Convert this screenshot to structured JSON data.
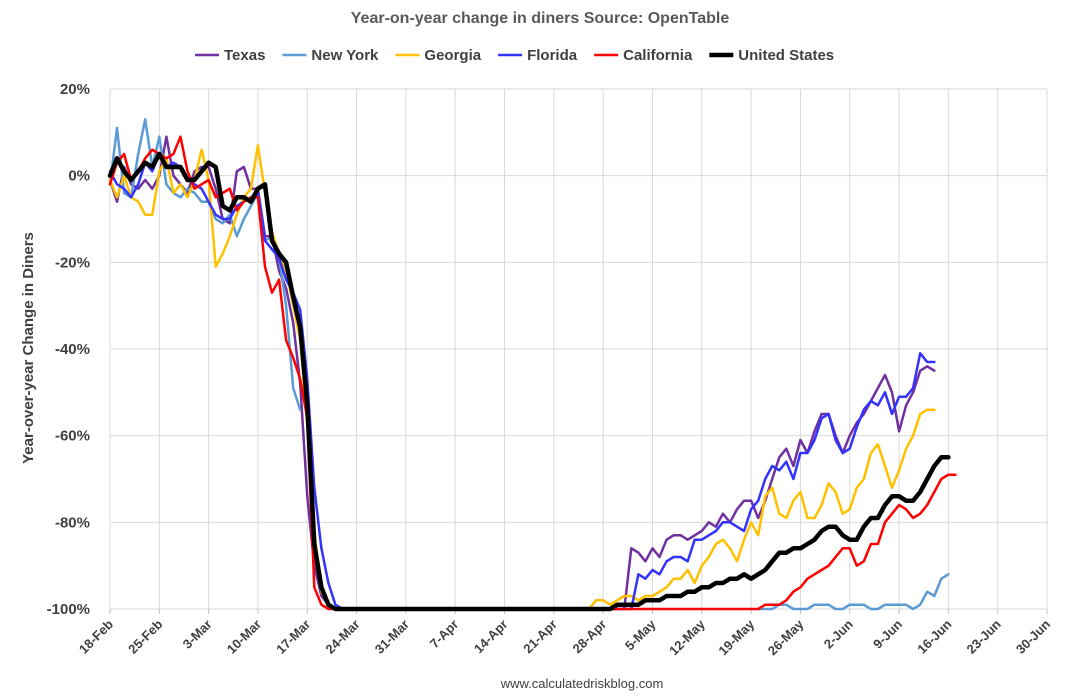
{
  "chart_data": {
    "type": "line",
    "title": "Year-on-year change in diners   Source: OpenTable",
    "ylabel": "Year-over-year Change in Diners",
    "xlabel": "",
    "ylim": [
      -100,
      20
    ],
    "yticks": [
      20,
      0,
      -20,
      -40,
      -60,
      -80,
      -100
    ],
    "ytick_labels": [
      "20%",
      "0%",
      "-20%",
      "-40%",
      "-60%",
      "-80%",
      "-100%"
    ],
    "x_start": "18-Feb",
    "x_range_days": [
      0,
      133
    ],
    "xtick_labels": [
      "18-Feb",
      "25-Feb",
      "3-Mar",
      "10-Mar",
      "17-Mar",
      "24-Mar",
      "31-Mar",
      "7-Apr",
      "14-Apr",
      "21-Apr",
      "28-Apr",
      "5-May",
      "12-May",
      "19-May",
      "26-May",
      "2-Jun",
      "9-Jun",
      "16-Jun",
      "23-Jun",
      "30-Jun"
    ],
    "grid": true,
    "legend_position": "top",
    "series": [
      {
        "name": "Texas",
        "color": "#7030a0",
        "width": 2.5,
        "values": [
          -1,
          -6,
          2,
          -2,
          -3,
          -1,
          -3,
          0,
          9,
          0,
          -2,
          -4,
          1,
          2,
          2,
          -3,
          -10,
          -11,
          1,
          2,
          -3,
          -3,
          -14,
          -14,
          -22,
          -26,
          -34,
          -48,
          -74,
          -90,
          -97,
          -99,
          -100,
          -100,
          -100,
          -100,
          -100,
          -100,
          -100,
          -100,
          -100,
          -100,
          -100,
          -100,
          -100,
          -100,
          -100,
          -100,
          -100,
          -100,
          -100,
          -100,
          -100,
          -100,
          -100,
          -100,
          -100,
          -100,
          -100,
          -100,
          -100,
          -100,
          -100,
          -100,
          -100,
          -100,
          -100,
          -100,
          -100,
          -100,
          -100,
          -100,
          -100,
          -100,
          -86,
          -87,
          -89,
          -86,
          -88,
          -84,
          -83,
          -83,
          -84,
          -83,
          -82,
          -80,
          -81,
          -78,
          -80,
          -77,
          -75,
          -75,
          -79,
          -75,
          -70,
          -65,
          -63,
          -67,
          -61,
          -64,
          -59,
          -55,
          -55,
          -60,
          -64,
          -60,
          -57,
          -55,
          -52,
          -49,
          -46,
          -50,
          -59,
          -53,
          -50,
          -45,
          -44,
          -45
        ]
      },
      {
        "name": "New York",
        "color": "#5b9bd5",
        "width": 2.5,
        "values": [
          -2,
          11,
          -4,
          -5,
          5,
          13,
          2,
          9,
          -2,
          -4,
          -5,
          -3,
          -4,
          -6,
          -6,
          -10,
          -11,
          -9,
          -14,
          -10,
          -7,
          -4,
          -15,
          -14,
          -19,
          -30,
          -49,
          -54,
          null,
          null,
          null,
          null,
          null,
          null,
          null,
          null,
          null,
          null,
          null,
          null,
          null,
          null,
          null,
          null,
          null,
          null,
          null,
          null,
          null,
          null,
          null,
          null,
          null,
          null,
          null,
          null,
          null,
          null,
          null,
          null,
          null,
          null,
          null,
          null,
          null,
          null,
          null,
          null,
          null,
          null,
          null,
          null,
          null,
          null,
          null,
          null,
          null,
          null,
          null,
          null,
          null,
          null,
          null,
          null,
          null,
          null,
          null,
          null,
          null,
          null,
          null,
          null,
          -100,
          -100,
          -100,
          -99,
          -99,
          -100,
          -100,
          -100,
          -99,
          -99,
          -99,
          -100,
          -100,
          -99,
          -99,
          -99,
          -100,
          -100,
          -99,
          -99,
          -99,
          -99,
          -100,
          -99,
          -96,
          -97,
          -93,
          -92
        ]
      },
      {
        "name": "Georgia",
        "color": "#ffc000",
        "width": 2.5,
        "values": [
          -1,
          -5,
          0,
          -5,
          -6,
          -9,
          -9,
          1,
          4,
          -4,
          -2,
          -5,
          -1,
          6,
          -1,
          -21,
          -18,
          -14,
          -9,
          -5,
          -3,
          7,
          -4,
          -13,
          -18,
          -22,
          -30,
          -38,
          -58,
          -82,
          -96,
          -99,
          -100,
          -100,
          -100,
          -100,
          -100,
          -100,
          -100,
          -100,
          -100,
          -100,
          -100,
          -100,
          -100,
          -100,
          -100,
          -100,
          -100,
          -100,
          -100,
          -100,
          -100,
          -100,
          -100,
          -100,
          -100,
          -100,
          -100,
          -100,
          -100,
          -100,
          -100,
          -100,
          -100,
          -100,
          -100,
          -100,
          -100,
          -98,
          -98,
          -99,
          -98,
          -97,
          -97,
          -98,
          -97,
          -97,
          -96,
          -95,
          -93,
          -93,
          -91,
          -94,
          -90,
          -88,
          -85,
          -84,
          -86,
          -89,
          -84,
          -80,
          -83,
          -74,
          -72,
          -78,
          -79,
          -75,
          -73,
          -79,
          -79,
          -76,
          -71,
          -73,
          -78,
          -77,
          -72,
          -70,
          -64,
          -62,
          -67,
          -72,
          -68,
          -63,
          -60,
          -55,
          -54,
          -54
        ]
      },
      {
        "name": "Florida",
        "color": "#3333ff",
        "width": 2.5,
        "values": [
          1,
          -2,
          -3,
          -5,
          -2,
          3,
          1,
          5,
          2,
          3,
          2,
          -1,
          -2,
          -3,
          -6,
          -9,
          -10,
          -10,
          -7,
          -6,
          -5,
          -4,
          -15,
          -17,
          -19,
          -24,
          -27,
          -31,
          -47,
          -72,
          -86,
          -94,
          -99,
          -100,
          -100,
          -100,
          -100,
          -100,
          -100,
          -100,
          -100,
          -100,
          -100,
          -100,
          -100,
          -100,
          -100,
          -100,
          -100,
          -100,
          -100,
          -100,
          -100,
          -100,
          -100,
          -100,
          -100,
          -100,
          -100,
          -100,
          -100,
          -100,
          -100,
          -100,
          -100,
          -100,
          -100,
          -100,
          -100,
          -100,
          -100,
          -100,
          -100,
          -100,
          -100,
          -92,
          -93,
          -91,
          -92,
          -89,
          -88,
          -88,
          -89,
          -84,
          -84,
          -83,
          -82,
          -80,
          -80,
          -81,
          -82,
          -77,
          -75,
          -70,
          -67,
          -68,
          -66,
          -70,
          -64,
          -64,
          -61,
          -56,
          -55,
          -61,
          -64,
          -63,
          -58,
          -54,
          -52,
          -53,
          -50,
          -55,
          -51,
          -51,
          -49,
          -41,
          -43,
          -43
        ]
      },
      {
        "name": "California",
        "color": "#ff0000",
        "width": 2.5,
        "values": [
          -2,
          3,
          5,
          -1,
          1,
          4,
          6,
          5,
          4,
          5,
          9,
          1,
          -3,
          -2,
          -1,
          -5,
          -4,
          -3,
          -8,
          -6,
          -5,
          -5,
          -21,
          -27,
          -24,
          -38,
          -42,
          -47,
          -56,
          -95,
          -99,
          -100,
          -100,
          -100,
          -100,
          -100,
          -100,
          -100,
          -100,
          -100,
          -100,
          -100,
          -100,
          -100,
          -100,
          -100,
          -100,
          -100,
          -100,
          -100,
          -100,
          -100,
          -100,
          -100,
          -100,
          -100,
          -100,
          -100,
          -100,
          -100,
          -100,
          -100,
          -100,
          -100,
          -100,
          -100,
          -100,
          -100,
          -100,
          -100,
          -100,
          -100,
          -100,
          -100,
          -100,
          -100,
          -100,
          -100,
          -100,
          -100,
          -100,
          -100,
          -100,
          -100,
          -100,
          -100,
          -100,
          -100,
          -100,
          -100,
          -100,
          -100,
          -100,
          -99,
          -99,
          -99,
          -98,
          -96,
          -95,
          -93,
          -92,
          -91,
          -90,
          -88,
          -86,
          -86,
          -90,
          -89,
          -85,
          -85,
          -80,
          -78,
          -76,
          -77,
          -79,
          -78,
          -76,
          -73,
          -70,
          -69,
          -69
        ]
      },
      {
        "name": "United States",
        "color": "#000000",
        "width": 4.5,
        "values": [
          0,
          4,
          1,
          -1,
          1,
          3,
          2,
          5,
          2,
          2,
          2,
          -1,
          -1,
          1,
          3,
          2,
          -7,
          -8,
          -5,
          -5,
          -6,
          -3,
          -2,
          -15,
          -18,
          -20,
          -28,
          -35,
          -53,
          -85,
          -95,
          -99,
          -100,
          -100,
          -100,
          -100,
          -100,
          -100,
          -100,
          -100,
          -100,
          -100,
          -100,
          -100,
          -100,
          -100,
          -100,
          -100,
          -100,
          -100,
          -100,
          -100,
          -100,
          -100,
          -100,
          -100,
          -100,
          -100,
          -100,
          -100,
          -100,
          -100,
          -100,
          -100,
          -100,
          -100,
          -100,
          -100,
          -100,
          -100,
          -100,
          -100,
          -99,
          -99,
          -99,
          -99,
          -98,
          -98,
          -98,
          -97,
          -97,
          -97,
          -96,
          -96,
          -95,
          -95,
          -94,
          -94,
          -93,
          -93,
          -92,
          -93,
          -92,
          -91,
          -89,
          -87,
          -87,
          -86,
          -86,
          -85,
          -84,
          -82,
          -81,
          -81,
          -83,
          -84,
          -84,
          -81,
          -79,
          -79,
          -76,
          -74,
          -74,
          -75,
          -75,
          -73,
          -70,
          -67,
          -65,
          -65
        ]
      }
    ]
  },
  "footer": "www.calculatedriskblog.com"
}
